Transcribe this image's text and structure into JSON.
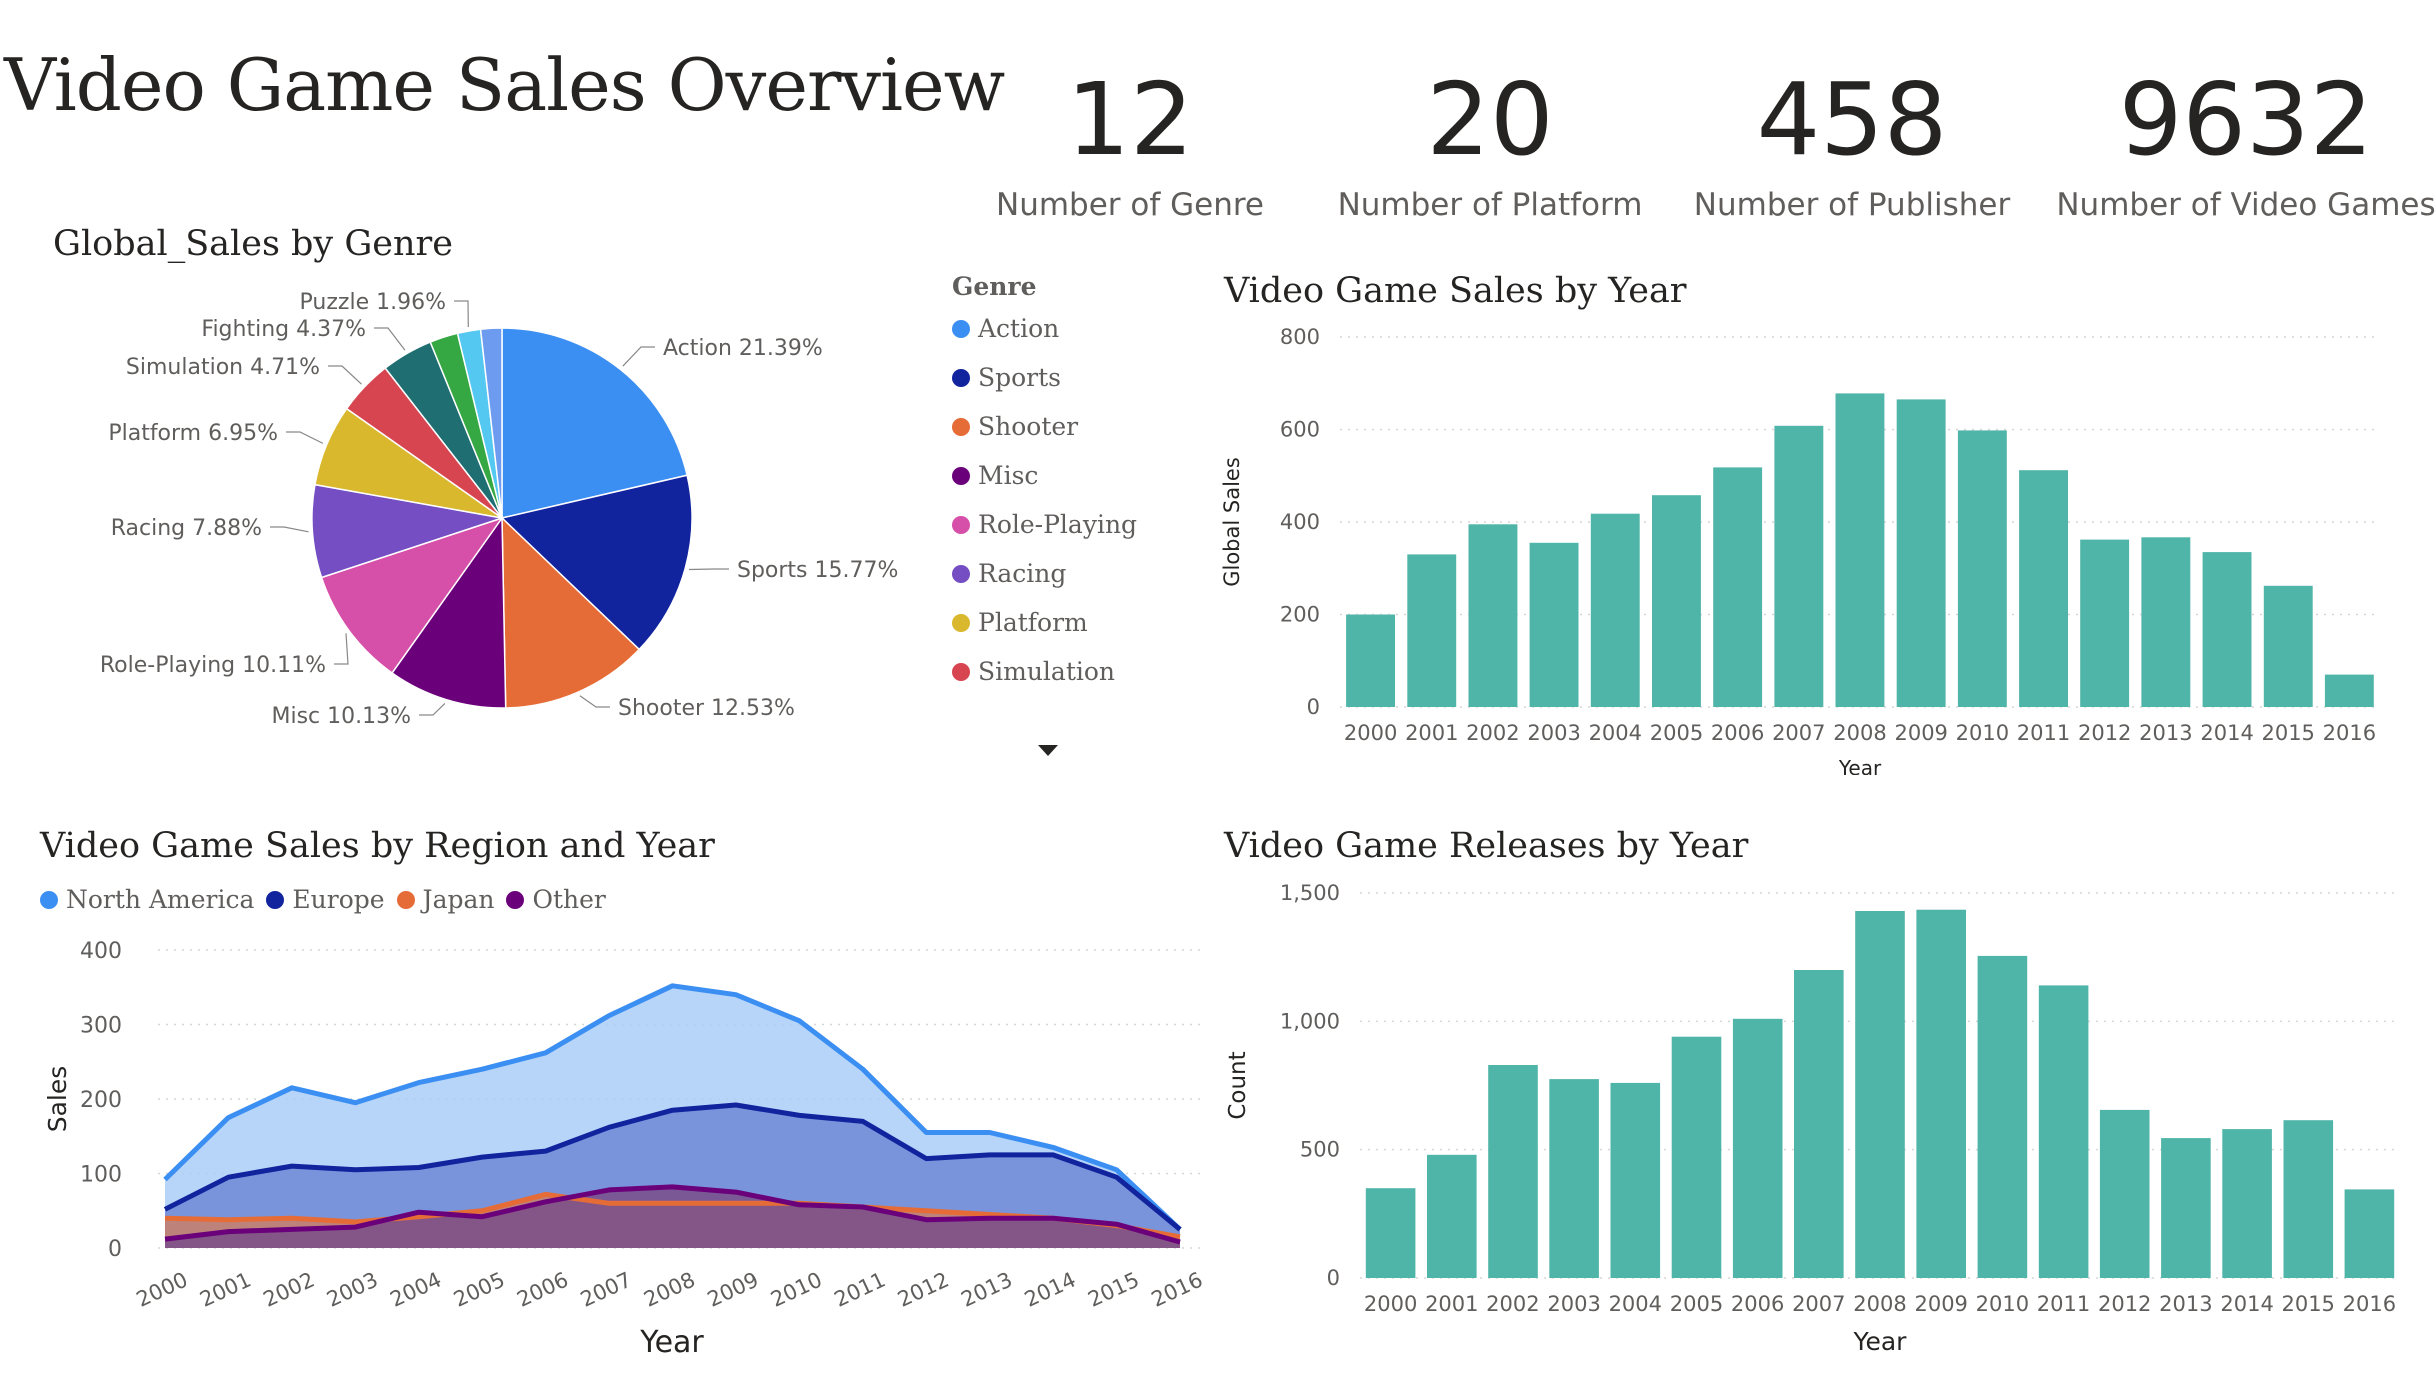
{
  "page": {
    "title": "Video Game Sales Overview"
  },
  "kpis": [
    {
      "value": "12",
      "label": "Number of Genre"
    },
    {
      "value": "20",
      "label": "Number of Platform"
    },
    {
      "value": "458",
      "label": "Number of Publisher"
    },
    {
      "value": "9632",
      "label": "Number of Video Games"
    }
  ],
  "colors": {
    "bars": "#4fb5a8",
    "gridline": "#d6d6d6",
    "north_america": "#3c8ff2",
    "europe": "#12239e",
    "japan": "#e66c37",
    "other": "#6b007b"
  },
  "chart_data": [
    {
      "type": "pie",
      "title": "Global_Sales by Genre",
      "legend_title": "Genre",
      "legend_placement": "right",
      "slices": [
        {
          "label": "Action",
          "value": 21.39,
          "display": "Action 21.39%",
          "color": "#3c8ff2"
        },
        {
          "label": "Sports",
          "value": 15.77,
          "display": "Sports 15.77%",
          "color": "#12239e"
        },
        {
          "label": "Shooter",
          "value": 12.53,
          "display": "Shooter 12.53%",
          "color": "#e66c37"
        },
        {
          "label": "Misc",
          "value": 10.13,
          "display": "Misc 10.13%",
          "color": "#6b007b"
        },
        {
          "label": "Role-Playing",
          "value": 10.11,
          "display": "Role-Playing 10.11%",
          "color": "#d64fa8"
        },
        {
          "label": "Racing",
          "value": 7.88,
          "display": "Racing 7.88%",
          "color": "#744ec2"
        },
        {
          "label": "Platform",
          "value": 6.95,
          "display": "Platform 6.95%",
          "color": "#d9b82e"
        },
        {
          "label": "Simulation",
          "value": 4.71,
          "display": "Simulation 4.71%",
          "color": "#d64550"
        },
        {
          "label": "Fighting",
          "value": 4.37,
          "display": "Fighting 4.37%",
          "color": "#1f6e72"
        },
        {
          "label": "",
          "value": 2.4,
          "display": "",
          "color": "#35a844"
        },
        {
          "label": "Puzzle",
          "value": 1.96,
          "display": "Puzzle 1.96%",
          "color": "#54c8f0"
        },
        {
          "label": "",
          "value": 1.8,
          "display": "",
          "color": "#6c9bf0"
        }
      ],
      "legend_items": [
        "Action",
        "Sports",
        "Shooter",
        "Misc",
        "Role-Playing",
        "Racing",
        "Platform",
        "Simulation"
      ]
    },
    {
      "type": "bar",
      "title": "Video Game Sales by Year",
      "xlabel": "Year",
      "ylabel": "Global Sales",
      "ylim": [
        0,
        800
      ],
      "yticks": [
        0,
        200,
        400,
        600,
        800
      ],
      "ytick_labels": [
        "0",
        "200",
        "400",
        "600",
        "800"
      ],
      "grid": true,
      "categories": [
        "2000",
        "2001",
        "2002",
        "2003",
        "2004",
        "2005",
        "2006",
        "2007",
        "2008",
        "2009",
        "2010",
        "2011",
        "2012",
        "2013",
        "2014",
        "2015",
        "2016"
      ],
      "values": [
        200,
        330,
        395,
        355,
        418,
        458,
        518,
        608,
        678,
        665,
        598,
        512,
        362,
        367,
        335,
        262,
        70
      ]
    },
    {
      "type": "area",
      "title": "Video Game Sales by Region and Year",
      "xlabel": "Year",
      "ylabel": "Sales",
      "ylim": [
        0,
        400
      ],
      "yticks": [
        0,
        100,
        200,
        300,
        400
      ],
      "ytick_labels": [
        "0",
        "100",
        "200",
        "300",
        "400"
      ],
      "grid": true,
      "legend_placement": "top-left",
      "x": [
        "2000",
        "2001",
        "2002",
        "2003",
        "2004",
        "2005",
        "2006",
        "2007",
        "2008",
        "2009",
        "2010",
        "2011",
        "2012",
        "2013",
        "2014",
        "2015",
        "2016"
      ],
      "series": [
        {
          "name": "North America",
          "color": "#3c8ff2",
          "fill": "#aaccf8",
          "values": [
            92,
            175,
            215,
            195,
            222,
            240,
            262,
            312,
            352,
            340,
            305,
            240,
            155,
            155,
            135,
            105,
            25
          ]
        },
        {
          "name": "Europe",
          "color": "#12239e",
          "fill": "#6f88d6",
          "values": [
            52,
            95,
            110,
            105,
            108,
            122,
            130,
            162,
            185,
            192,
            178,
            170,
            120,
            125,
            125,
            95,
            25
          ]
        },
        {
          "name": "Japan",
          "color": "#e66c37",
          "fill": "#c98068",
          "values": [
            40,
            38,
            40,
            35,
            42,
            50,
            72,
            60,
            60,
            60,
            60,
            55,
            50,
            45,
            40,
            30,
            15
          ]
        },
        {
          "name": "Other",
          "color": "#6b007b",
          "fill": "#7a4d8a",
          "values": [
            12,
            22,
            25,
            28,
            48,
            42,
            62,
            78,
            82,
            75,
            58,
            55,
            38,
            40,
            40,
            32,
            8
          ]
        }
      ]
    },
    {
      "type": "bar",
      "title": "Video Game Releases by Year",
      "xlabel": "Year",
      "ylabel": "Count",
      "ylim": [
        0,
        1500
      ],
      "yticks": [
        0,
        500,
        1000,
        1500
      ],
      "ytick_labels": [
        "0",
        "500",
        "1,000",
        "1,500"
      ],
      "grid": true,
      "categories": [
        "2000",
        "2001",
        "2002",
        "2003",
        "2004",
        "2005",
        "2006",
        "2007",
        "2008",
        "2009",
        "2010",
        "2011",
        "2012",
        "2013",
        "2014",
        "2015",
        "2016"
      ],
      "values": [
        350,
        480,
        830,
        775,
        760,
        940,
        1010,
        1200,
        1430,
        1435,
        1255,
        1140,
        655,
        545,
        580,
        615,
        345
      ]
    }
  ]
}
